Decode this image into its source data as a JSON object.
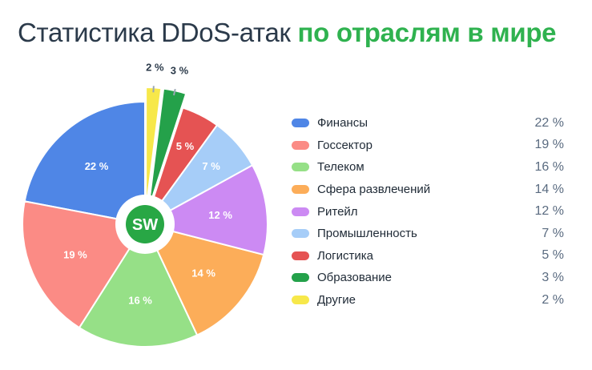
{
  "title": {
    "part1": "Статистика DDoS-атак",
    "part2": "по отраслям в мире"
  },
  "logo": {
    "text": "SW"
  },
  "colors": {
    "title_dark": "#2b3a4a",
    "title_green": "#2fb24f",
    "logo_green": "#28a745"
  },
  "chart_data": {
    "type": "pie",
    "title": "Статистика DDoS-атак по отраслям в мире",
    "categories": [
      "Финансы",
      "Госсектор",
      "Телеком",
      "Сфера развлечений",
      "Ритейл",
      "Промышленность",
      "Логистика",
      "Образование",
      "Другие"
    ],
    "values": [
      22,
      19,
      16,
      14,
      12,
      7,
      5,
      3,
      2
    ],
    "labels": [
      "22 %",
      "19 %",
      "16 %",
      "14 %",
      "12 %",
      "7 %",
      "5 %",
      "3 %",
      "2 %"
    ],
    "colors": [
      "#4f86e6",
      "#fb8b85",
      "#96e087",
      "#fcad59",
      "#cc8af3",
      "#a6cdf8",
      "#e55353",
      "#24a14a",
      "#f7e84a"
    ],
    "legend_position": "right"
  },
  "legend": {
    "items": [
      {
        "label": "Финансы",
        "value": "22 %"
      },
      {
        "label": "Госсектор",
        "value": "19 %"
      },
      {
        "label": "Телеком",
        "value": "16 %"
      },
      {
        "label": "Сфера развлечений",
        "value": "14 %"
      },
      {
        "label": "Ритейл",
        "value": "12 %"
      },
      {
        "label": "Промышленность",
        "value": "7 %"
      },
      {
        "label": "Логистика",
        "value": "5 %"
      },
      {
        "label": "Образование",
        "value": "3 %"
      },
      {
        "label": "Другие",
        "value": "2 %"
      }
    ]
  }
}
